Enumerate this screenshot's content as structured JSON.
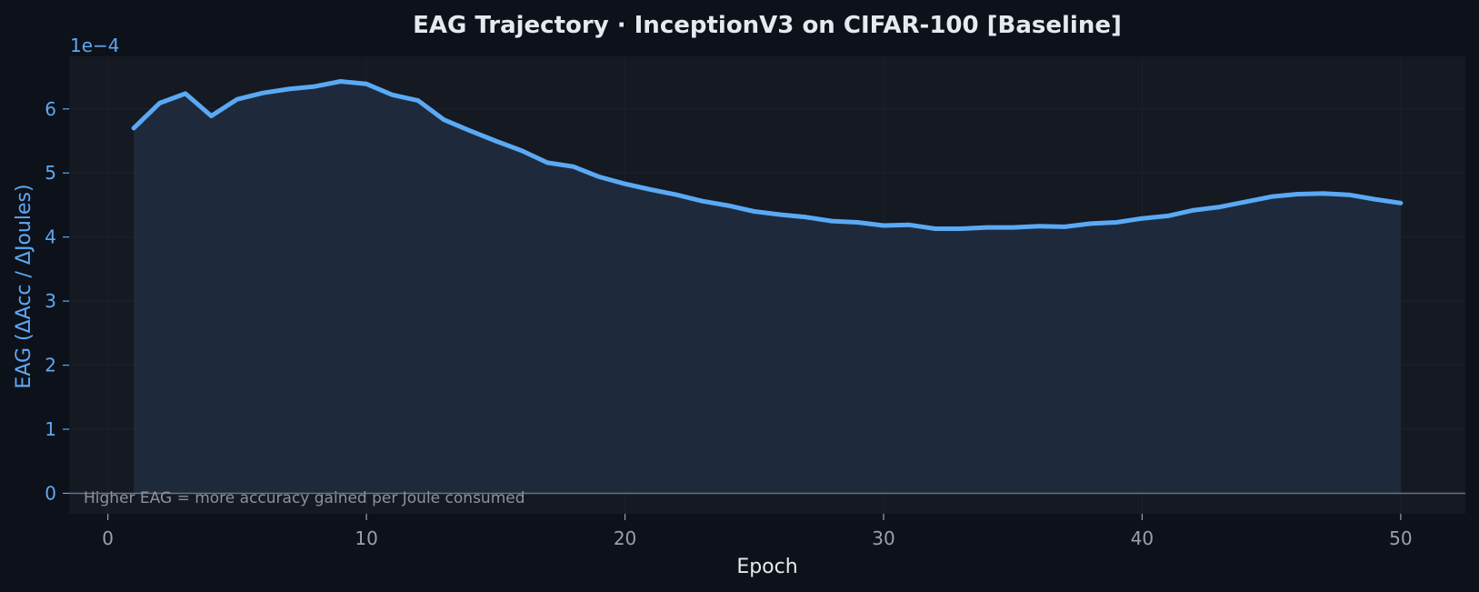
{
  "colors": {
    "background": "#0d111a",
    "plot_background": "#141922",
    "line": "#5aa9f5",
    "fill": "#1e2a3c",
    "zero_line": "#6b7280",
    "grid": "#1c222c"
  },
  "chart_data": {
    "type": "area",
    "title": "EAG Trajectory  ·  InceptionV3 on CIFAR-100  [Baseline]",
    "xlabel": "Epoch",
    "ylabel": "EAG  (ΔAcc / ΔJoules)",
    "y_offset_label": "1e−4",
    "annotation": "Higher EAG = more accuracy gained per Joule consumed",
    "xlim": [
      -1.5,
      52.5
    ],
    "ylim": [
      -0.32,
      6.82
    ],
    "x_ticks": [
      0,
      10,
      20,
      30,
      40,
      50
    ],
    "y_ticks": [
      0,
      1,
      2,
      3,
      4,
      5,
      6
    ],
    "grid": true,
    "baseline_zero_line": true,
    "series": [
      {
        "x": [
          1,
          2,
          3,
          4,
          5,
          6,
          7,
          8,
          9,
          10,
          11,
          12,
          13,
          14,
          15,
          16,
          17,
          18,
          19,
          20,
          21,
          22,
          23,
          24,
          25,
          26,
          27,
          28,
          29,
          30,
          31,
          32,
          33,
          34,
          35,
          36,
          37,
          38,
          39,
          40,
          41,
          42,
          43,
          44,
          45,
          46,
          47,
          48,
          49,
          50
        ],
        "y": [
          5.7,
          6.09,
          6.24,
          5.89,
          6.15,
          6.25,
          6.31,
          6.35,
          6.43,
          6.39,
          6.22,
          6.13,
          5.83,
          5.66,
          5.5,
          5.35,
          5.16,
          5.1,
          4.94,
          4.83,
          4.74,
          4.66,
          4.56,
          4.49,
          4.4,
          4.35,
          4.31,
          4.25,
          4.23,
          4.18,
          4.19,
          4.13,
          4.13,
          4.15,
          4.15,
          4.17,
          4.16,
          4.21,
          4.23,
          4.29,
          4.33,
          4.42,
          4.47,
          4.55,
          4.63,
          4.67,
          4.68,
          4.66,
          4.59,
          4.53
        ]
      }
    ]
  }
}
